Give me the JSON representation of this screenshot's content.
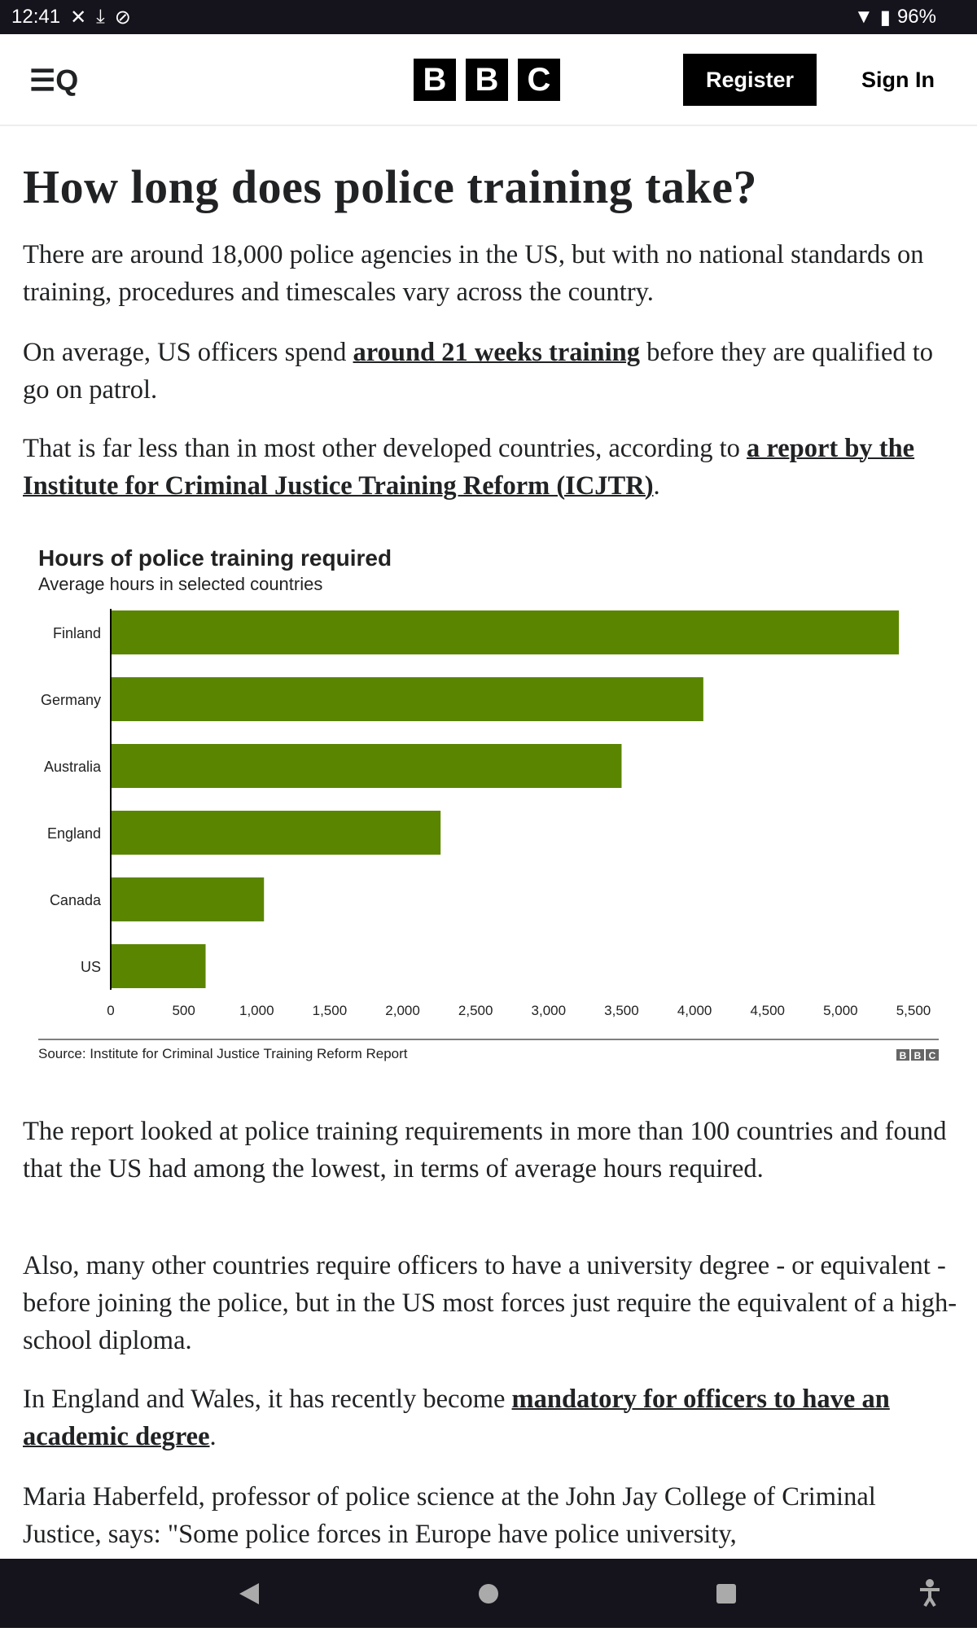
{
  "status_bar": {
    "time": "12:41",
    "battery": "96%"
  },
  "header": {
    "menu_icon": "menu-search-icon",
    "logo": "BBC",
    "logo_letters": [
      "B",
      "B",
      "C"
    ],
    "register": "Register",
    "sign_in": "Sign In"
  },
  "article": {
    "title": "How long does police training take?",
    "paragraphs": [
      {
        "before": "There are around 18,000 police agencies in the US, but with no national standards on training, procedures and timescales vary across the country.",
        "link": "",
        "after": ""
      },
      {
        "before": "On average, US officers spend ",
        "link": "around 21 weeks training",
        "after": " before they are qualified to go on patrol."
      },
      {
        "before": "That is far less than in most other developed countries, according to ",
        "link": "a report by the Institute for Criminal Justice Training Reform (ICJTR)",
        "after": "."
      },
      {
        "before": "The report looked at police training requirements in more than 100 countries and found that the US had among the lowest, in terms of average hours required.",
        "link": "",
        "after": ""
      },
      {
        "before": "Also, many other countries require officers to have a university degree - or equivalent - before joining the police, but in the US most forces just require the equivalent of a high-school diploma.",
        "link": "",
        "after": ""
      },
      {
        "before": "In England and Wales, it has recently become ",
        "link": "mandatory for officers to have an academic degree",
        "after": "."
      },
      {
        "before": "Maria Haberfeld, professor of police science at the John Jay College of Criminal Justice, says: \"Some police forces in Europe have police university,",
        "link": "",
        "after": ""
      }
    ]
  },
  "chart_data": {
    "type": "bar",
    "orientation": "horizontal",
    "title": "Hours of police training required",
    "subtitle": "Average hours in selected countries",
    "categories": [
      "Finland",
      "Germany",
      "Australia",
      "England",
      "Canada",
      "US"
    ],
    "values": [
      5400,
      4060,
      3500,
      2260,
      1050,
      650
    ],
    "xlim": [
      0,
      5500
    ],
    "ticks": [
      "0",
      "500",
      "1,000",
      "1,500",
      "2,000",
      "2,500",
      "3,000",
      "3,500",
      "4,000",
      "4,500",
      "5,000",
      "5,500"
    ],
    "source": "Source: Institute for Criminal Justice Training Reform Report",
    "bar_color": "#5a8500",
    "grid": false
  }
}
